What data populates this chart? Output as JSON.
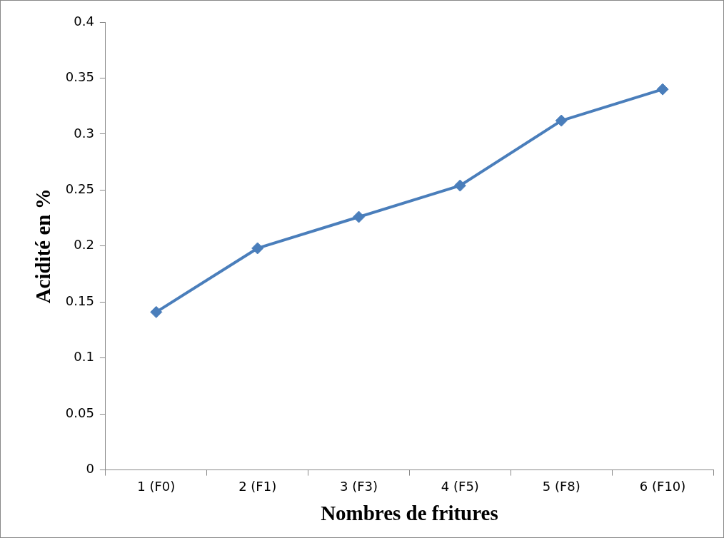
{
  "chart_data": {
    "type": "line",
    "xlabel": "Nombres de fritures",
    "ylabel": "Acidité en %",
    "categories": [
      "1 (F0)",
      "2 (F1)",
      "3 (F3)",
      "4 (F5)",
      "5 (F8)",
      "6 (F10)"
    ],
    "series": [
      {
        "color": "#4a7ebb",
        "values": [
          0.141,
          0.198,
          0.226,
          0.254,
          0.312,
          0.34
        ]
      }
    ],
    "ylim": [
      0,
      0.4
    ],
    "yticks": [
      0,
      0.05,
      0.1,
      0.15,
      0.2,
      0.25,
      0.3,
      0.35,
      0.4
    ],
    "grid": false,
    "legend": false,
    "marker": "diamond",
    "line_style": "solid"
  }
}
